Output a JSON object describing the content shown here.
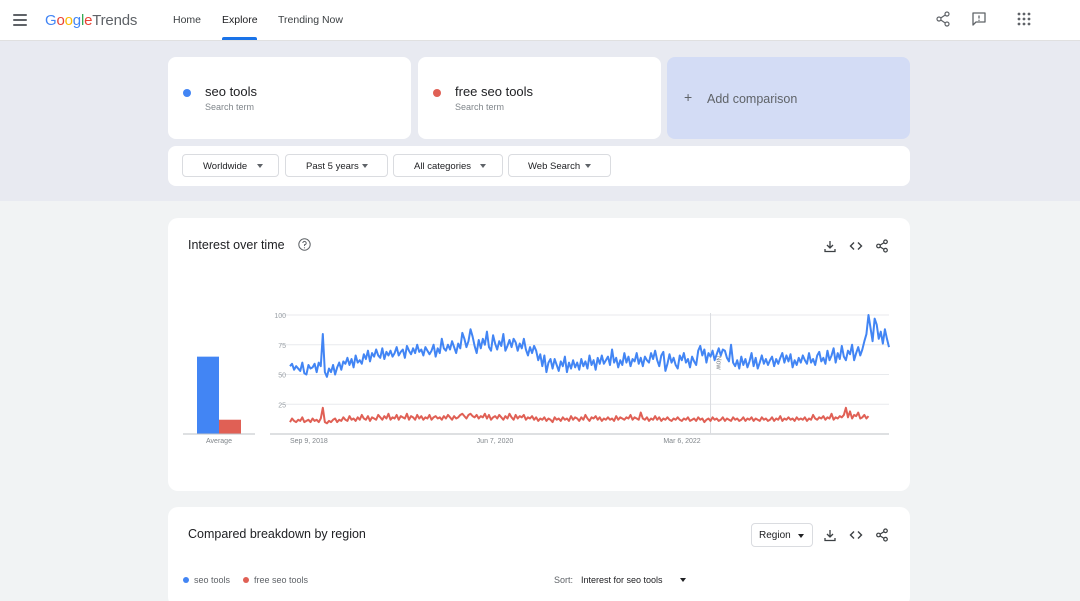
{
  "app": {
    "logo": {
      "google": "Google",
      "trends": "Trends"
    },
    "nav": [
      "Home",
      "Explore",
      "Trending Now"
    ],
    "active_tab": "Explore"
  },
  "terms": [
    {
      "name": "seo tools",
      "subtitle": "Search term",
      "color": "#4285f4"
    },
    {
      "name": "free seo tools",
      "subtitle": "Search term",
      "color": "#e06055"
    }
  ],
  "add_comparison": {
    "icon": "+",
    "label": "Add comparison"
  },
  "filters": [
    "Worldwide",
    "Past 5 years",
    "All categories",
    "Web Search"
  ],
  "interest": {
    "title": "Interest over time"
  },
  "chart_data": {
    "type": "line",
    "y_ticks": [
      "100",
      "75",
      "50",
      "25"
    ],
    "ylim": [
      0,
      100
    ],
    "x_ticks": [
      "Sep 9, 2018",
      "Jun 7, 2020",
      "Mar 6, 2022"
    ],
    "x_tick_weeks": [
      0,
      91,
      182
    ],
    "now_label": "Now",
    "now_week": 205,
    "average_label": "Average",
    "averages": [
      65,
      12
    ],
    "grid": true,
    "series": [
      {
        "name": "seo tools",
        "color": "#4285f4",
        "values": [
          57,
          59,
          54,
          57,
          55,
          53,
          60,
          51,
          50,
          58,
          55,
          56,
          59,
          52,
          60,
          57,
          84,
          52,
          48,
          55,
          52,
          58,
          50,
          56,
          60,
          54,
          61,
          59,
          64,
          58,
          63,
          56,
          66,
          60,
          62,
          59,
          67,
          63,
          70,
          61,
          68,
          65,
          71,
          66,
          64,
          72,
          63,
          69,
          66,
          70,
          65,
          68,
          73,
          66,
          69,
          71,
          64,
          74,
          70,
          67,
          72,
          68,
          75,
          69,
          71,
          66,
          73,
          70,
          67,
          70,
          75,
          65,
          72,
          68,
          80,
          72,
          70,
          75,
          71,
          78,
          73,
          68,
          76,
          72,
          85,
          80,
          73,
          78,
          88,
          82,
          74,
          68,
          79,
          72,
          80,
          75,
          86,
          73,
          70,
          83,
          76,
          71,
          78,
          74,
          84,
          70,
          74,
          79,
          73,
          80,
          77,
          70,
          76,
          72,
          80,
          71,
          66,
          73,
          68,
          74,
          70,
          62,
          67,
          57,
          66,
          52,
          60,
          63,
          55,
          63,
          58,
          53,
          61,
          57,
          65,
          52,
          60,
          55,
          62,
          56,
          60,
          54,
          63,
          57,
          61,
          55,
          66,
          58,
          62,
          54,
          64,
          59,
          66,
          59,
          62,
          65,
          58,
          71,
          60,
          64,
          56,
          62,
          58,
          68,
          60,
          65,
          57,
          63,
          61,
          68,
          59,
          64,
          57,
          65,
          62,
          60,
          68,
          63,
          70,
          62,
          57,
          66,
          69,
          53,
          59,
          67,
          60,
          64,
          58,
          55,
          66,
          62,
          68,
          60,
          63,
          56,
          65,
          61,
          58,
          70,
          74,
          66,
          71,
          60,
          68,
          65,
          70,
          62,
          67,
          72,
          66,
          71,
          70,
          64,
          61,
          75,
          60,
          57,
          62,
          55,
          65,
          58,
          63,
          56,
          61,
          68,
          57,
          64,
          55,
          60,
          66,
          59,
          63,
          58,
          62,
          65,
          57,
          63,
          59,
          64,
          68,
          60,
          66,
          61,
          67,
          56,
          62,
          58,
          64,
          60,
          66,
          62,
          59,
          68,
          60,
          63,
          58,
          66,
          69,
          61,
          64,
          59,
          70,
          62,
          66,
          72,
          60,
          68,
          63,
          74,
          65,
          62,
          70,
          67,
          75,
          62,
          68,
          73,
          66,
          71,
          78,
          84,
          100,
          89,
          78,
          97,
          92,
          80,
          86,
          76,
          88,
          80,
          73
        ]
      },
      {
        "name": "free seo tools",
        "color": "#e06055",
        "values": [
          10,
          13,
          11,
          10,
          12,
          11,
          14,
          10,
          11,
          12,
          10,
          13,
          11,
          12,
          10,
          13,
          22,
          10,
          9,
          11,
          10,
          12,
          13,
          10,
          12,
          11,
          14,
          12,
          11,
          15,
          12,
          13,
          11,
          14,
          12,
          16,
          13,
          12,
          15,
          11,
          14,
          13,
          12,
          16,
          14,
          12,
          15,
          13,
          17,
          12,
          14,
          13,
          16,
          12,
          15,
          14,
          13,
          17,
          12,
          15,
          14,
          12,
          16,
          13,
          15,
          12,
          14,
          13,
          16,
          12,
          14,
          15,
          13,
          14,
          12,
          15,
          13,
          16,
          14,
          12,
          15,
          13,
          14,
          16,
          17,
          15,
          13,
          16,
          17,
          15,
          14,
          16,
          13,
          15,
          14,
          17,
          13,
          16,
          12,
          14,
          15,
          13,
          16,
          14,
          12,
          15,
          13,
          17,
          14,
          12,
          16,
          13,
          15,
          14,
          16,
          12,
          14,
          13,
          15,
          12,
          14,
          11,
          13,
          12,
          14,
          11,
          13,
          12,
          10,
          14,
          12,
          13,
          11,
          14,
          12,
          13,
          11,
          15,
          12,
          14,
          13,
          11,
          14,
          12,
          16,
          13,
          11,
          14,
          13,
          15,
          12,
          14,
          11,
          13,
          12,
          14,
          12,
          13,
          11,
          15,
          12,
          14,
          13,
          12,
          14,
          13,
          16,
          12,
          14,
          13,
          12,
          18,
          13,
          12,
          14,
          11,
          13,
          12,
          15,
          12,
          14,
          11,
          13,
          12,
          14,
          12,
          11,
          13,
          12,
          14,
          12,
          11,
          13,
          12,
          14,
          11,
          12,
          13,
          11,
          14,
          12,
          13,
          10,
          12,
          13,
          11,
          14,
          12,
          13,
          11,
          12,
          14,
          11,
          13,
          12,
          11,
          14,
          12,
          13,
          11,
          12,
          14,
          11,
          13,
          12,
          14,
          11,
          13,
          12,
          11,
          14,
          12,
          13,
          11,
          12,
          14,
          11,
          13,
          12,
          15,
          11,
          13,
          12,
          14,
          12,
          13,
          11,
          14,
          12,
          13,
          12,
          14,
          11,
          13,
          12,
          16,
          13,
          12,
          14,
          13,
          15,
          12,
          14,
          13,
          17,
          12,
          14,
          13,
          15,
          14,
          16,
          22,
          14,
          19,
          13,
          16,
          15,
          18,
          13,
          14,
          16,
          13,
          15
        ]
      }
    ]
  },
  "breakdown": {
    "title": "Compared breakdown by region",
    "region_select": "Region",
    "sort_label": "Sort:",
    "sort_value": "Interest for seo tools"
  }
}
